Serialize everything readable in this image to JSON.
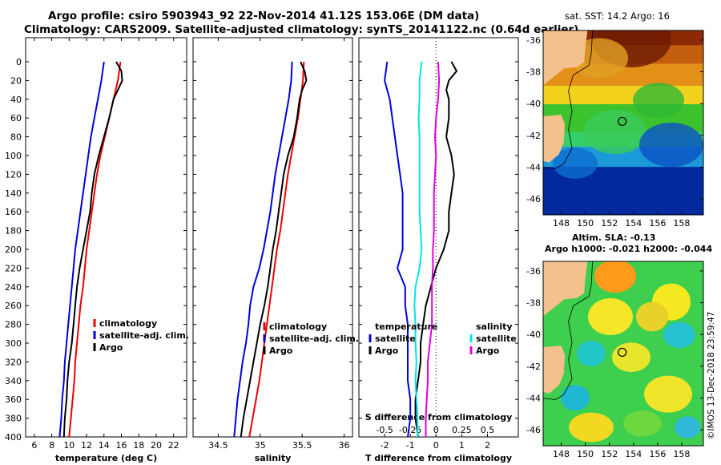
{
  "title_line1": "Argo profile: csiro 5903943_92 22-Nov-2014 41.12S 153.06E (DM data)",
  "title_line2": "Climatology: CARS2009. Satellite-adjusted climatology: synTS_20141122.nc (0.64d earlier)",
  "map_top_title": "sat. SST: 14.2 Argo: 16",
  "map_bottom_title1": "Altim. SLA: -0.13",
  "map_bottom_title2": "Argo h1000: -0.021 h2000: -0.044",
  "credit": "©IMOS 13-Dec-2018 23:59:47",
  "colors": {
    "climatology": "#ee0000",
    "satellite": "#0000dd",
    "argo": "#000000",
    "sat_salinity": "#00e5e5",
    "argo_salinity": "#e000e0"
  },
  "chart_data": [
    {
      "type": "line",
      "name": "temperature-panel",
      "xlabel": "temperature (deg C)",
      "ylabel": "",
      "xlim": [
        5,
        23.5
      ],
      "ylim": [
        400,
        0
      ],
      "xticks": [
        6,
        8,
        10,
        12,
        14,
        16,
        18,
        20,
        22
      ],
      "yticks": [
        0,
        20,
        40,
        60,
        80,
        100,
        120,
        140,
        160,
        180,
        200,
        220,
        240,
        260,
        280,
        300,
        320,
        340,
        360,
        380,
        400
      ],
      "legend": [
        "climatology",
        "satellite-adj. clim.",
        "Argo"
      ],
      "series": [
        {
          "name": "climatology",
          "depth": [
            0,
            20,
            40,
            60,
            80,
            100,
            120,
            140,
            160,
            180,
            200,
            220,
            240,
            260,
            280,
            300,
            320,
            340,
            360,
            380,
            400
          ],
          "values": [
            15.9,
            15.6,
            15.1,
            14.6,
            14.1,
            13.6,
            13.2,
            12.9,
            12.6,
            12.3,
            12.0,
            11.8,
            11.6,
            11.3,
            11.1,
            10.9,
            10.7,
            10.6,
            10.4,
            10.2,
            10.0
          ]
        },
        {
          "name": "satellite-adj. clim.",
          "depth": [
            0,
            20,
            40,
            60,
            80,
            100,
            120,
            140,
            160,
            180,
            200,
            220,
            240,
            260,
            280,
            300,
            320,
            340,
            360,
            380,
            400
          ],
          "values": [
            14.0,
            13.7,
            13.3,
            12.9,
            12.5,
            12.2,
            11.9,
            11.6,
            11.3,
            11.0,
            10.7,
            10.5,
            10.3,
            10.1,
            9.9,
            9.7,
            9.5,
            9.4,
            9.2,
            9.1,
            8.9
          ]
        },
        {
          "name": "Argo",
          "depth": [
            0,
            10,
            20,
            30,
            40,
            60,
            80,
            100,
            120,
            140,
            160,
            180,
            200,
            220,
            240,
            260,
            280,
            300,
            320,
            340,
            360,
            380,
            400
          ],
          "values": [
            15.4,
            16.0,
            16.1,
            15.6,
            15.1,
            14.6,
            14.0,
            13.4,
            12.9,
            12.6,
            12.4,
            12.0,
            11.6,
            11.2,
            10.9,
            10.7,
            10.5,
            10.3,
            10.0,
            9.8,
            9.7,
            9.5,
            9.4
          ]
        }
      ]
    },
    {
      "type": "line",
      "name": "salinity-panel",
      "xlabel": "salinity",
      "ylabel": "",
      "xlim": [
        34.2,
        36.1
      ],
      "ylim": [
        400,
        0
      ],
      "xticks": [
        34.5,
        35,
        35.5,
        36
      ],
      "legend": [
        "climatology",
        "satellite-adj. clim.",
        "Argo"
      ],
      "series": [
        {
          "name": "climatology",
          "depth": [
            0,
            20,
            40,
            60,
            80,
            100,
            120,
            140,
            160,
            180,
            200,
            220,
            240,
            260,
            280,
            300,
            320,
            340,
            360,
            380,
            400
          ],
          "values": [
            35.52,
            35.51,
            35.48,
            35.45,
            35.41,
            35.37,
            35.33,
            35.3,
            35.27,
            35.24,
            35.2,
            35.17,
            35.14,
            35.11,
            35.08,
            35.05,
            35.02,
            34.99,
            34.95,
            34.91,
            34.87
          ]
        },
        {
          "name": "satellite-adj. clim.",
          "depth": [
            0,
            20,
            40,
            60,
            80,
            100,
            120,
            140,
            160,
            180,
            200,
            220,
            240,
            260,
            280,
            300,
            320,
            340,
            360,
            380,
            400
          ],
          "values": [
            35.38,
            35.37,
            35.34,
            35.3,
            35.26,
            35.22,
            35.18,
            35.15,
            35.12,
            35.08,
            35.04,
            34.99,
            34.92,
            34.88,
            34.86,
            34.83,
            34.79,
            34.76,
            34.73,
            34.71,
            34.69
          ]
        },
        {
          "name": "Argo",
          "depth": [
            0,
            10,
            20,
            30,
            40,
            60,
            80,
            100,
            120,
            140,
            160,
            180,
            200,
            220,
            240,
            260,
            280,
            300,
            320,
            340,
            360,
            380,
            400
          ],
          "values": [
            35.48,
            35.53,
            35.55,
            35.5,
            35.47,
            35.44,
            35.4,
            35.33,
            35.28,
            35.25,
            35.22,
            35.19,
            35.15,
            35.12,
            35.09,
            35.05,
            35.0,
            34.96,
            34.92,
            34.88,
            34.84,
            34.8,
            34.77
          ]
        }
      ]
    },
    {
      "type": "line",
      "name": "difference-panel",
      "xlabel": "T difference from climatology",
      "xlabel_top": "S difference from climatology",
      "xlim": [
        -3,
        3.2
      ],
      "ylim": [
        400,
        0
      ],
      "xticks": [
        -2,
        -1,
        0,
        1,
        2
      ],
      "s_ticks": [
        -0.5,
        -0.25,
        0,
        0.25,
        0.5
      ],
      "s_tick_labels": [
        "-0.5",
        "-0.25",
        "0",
        "0.25",
        "0.5"
      ],
      "legend_temperature": {
        "title": "temperature",
        "items": [
          "satellite",
          "Argo"
        ]
      },
      "legend_salinity": {
        "title": "salinity",
        "items": [
          "satellite",
          "Argo"
        ]
      },
      "series": [
        {
          "name": "T satellite",
          "depth": [
            0,
            20,
            40,
            60,
            80,
            100,
            120,
            140,
            160,
            180,
            200,
            220,
            240,
            260,
            280,
            300,
            320,
            340,
            360,
            380,
            400
          ],
          "values": [
            -1.9,
            -2.0,
            -1.8,
            -1.7,
            -1.6,
            -1.5,
            -1.4,
            -1.3,
            -1.3,
            -1.3,
            -1.3,
            -1.5,
            -1.2,
            -1.2,
            -1.1,
            -1.1,
            -1.1,
            -1.1,
            -1.0,
            -1.0,
            -1.1
          ]
        },
        {
          "name": "T Argo",
          "depth": [
            0,
            10,
            20,
            30,
            40,
            60,
            80,
            100,
            120,
            140,
            160,
            180,
            200,
            220,
            240,
            260,
            280,
            300,
            320,
            340,
            360,
            380,
            400
          ],
          "values": [
            0.6,
            0.8,
            0.5,
            0.4,
            0.5,
            0.5,
            0.4,
            0.6,
            0.7,
            0.6,
            0.5,
            0.5,
            0.3,
            0.0,
            -0.2,
            -0.4,
            -0.5,
            -0.6,
            -0.6,
            -0.7,
            -0.8,
            -0.8,
            -0.7
          ]
        },
        {
          "name": "S satellite",
          "depth": [
            0,
            20,
            40,
            60,
            80,
            100,
            120,
            140,
            160,
            180,
            200,
            220,
            240,
            260,
            280,
            300,
            320,
            340,
            360,
            380,
            400
          ],
          "values": [
            -0.14,
            -0.16,
            -0.16,
            -0.17,
            -0.16,
            -0.16,
            -0.16,
            -0.16,
            -0.16,
            -0.15,
            -0.14,
            -0.16,
            -0.2,
            -0.21,
            -0.2,
            -0.2,
            -0.19,
            -0.2,
            -0.19,
            -0.18,
            -0.18
          ]
        },
        {
          "name": "S Argo",
          "depth": [
            0,
            20,
            40,
            60,
            80,
            100,
            120,
            140,
            160,
            180,
            200,
            220,
            240,
            260,
            280,
            300,
            320,
            340,
            360,
            380,
            400
          ],
          "values": [
            0.02,
            0.03,
            0.02,
            0.0,
            -0.01,
            0.0,
            -0.01,
            -0.02,
            -0.02,
            -0.02,
            -0.03,
            -0.03,
            -0.04,
            -0.04,
            -0.04,
            -0.06,
            -0.08,
            -0.08,
            -0.09,
            -0.1,
            -0.1
          ]
        }
      ]
    },
    {
      "type": "heatmap",
      "name": "sst-map",
      "title": "sat. SST: 14.2 Argo: 16",
      "xticks": [
        148,
        150,
        152,
        154,
        156,
        158
      ],
      "yticks": [
        -36,
        -38,
        -40,
        -42,
        -44,
        -46
      ],
      "argo_position": [
        153.06,
        -41.12
      ]
    },
    {
      "type": "heatmap",
      "name": "sla-map",
      "title": "Altim. SLA: -0.13",
      "xticks": [
        148,
        150,
        152,
        154,
        156,
        158
      ],
      "yticks": [
        -36,
        -38,
        -40,
        -42,
        -44,
        -46
      ],
      "argo_position": [
        153.06,
        -41.12
      ]
    }
  ]
}
